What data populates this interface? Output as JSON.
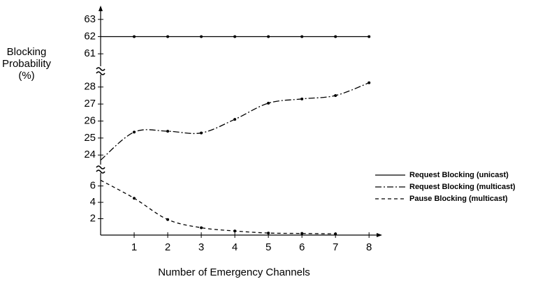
{
  "chart_data": {
    "type": "line",
    "ylabel": [
      "Blocking",
      "Probability",
      "(%)"
    ],
    "xlabel": "Number of Emergency Channels",
    "x": [
      0,
      1,
      2,
      3,
      4,
      5,
      6,
      7,
      8
    ],
    "xlim": [
      0,
      8.35
    ],
    "xticks": [
      1,
      2,
      3,
      4,
      5,
      6,
      7,
      8
    ],
    "color": "#000000",
    "legend": "right",
    "panels": [
      {
        "ylim": [
          60.6,
          63.6
        ],
        "yticks": [
          61,
          62,
          63
        ],
        "series": [
          {
            "name": "Request Blocking (unicast)",
            "dash": "solid",
            "values": [
              62,
              62,
              62,
              62,
              62,
              62,
              62,
              62,
              62
            ]
          }
        ]
      },
      {
        "ylim": [
          23.6,
          28.4
        ],
        "yticks": [
          24,
          25,
          26,
          27,
          28
        ],
        "series": [
          {
            "name": "Request Blocking (multicast)",
            "dash": "dashdot",
            "values": [
              23.7,
              25.35,
              25.4,
              25.3,
              26.1,
              27.05,
              27.3,
              27.5,
              28.25
            ]
          }
        ]
      },
      {
        "ylim": [
          0,
          7.5
        ],
        "yticks": [
          2,
          4,
          6
        ],
        "series": [
          {
            "name": "Pause Blocking (multicast)",
            "dash": "dashed",
            "values": [
              6.7,
              4.5,
              1.9,
              0.9,
              0.5,
              0.25,
              0.2,
              0.15,
              null
            ]
          }
        ]
      }
    ]
  }
}
